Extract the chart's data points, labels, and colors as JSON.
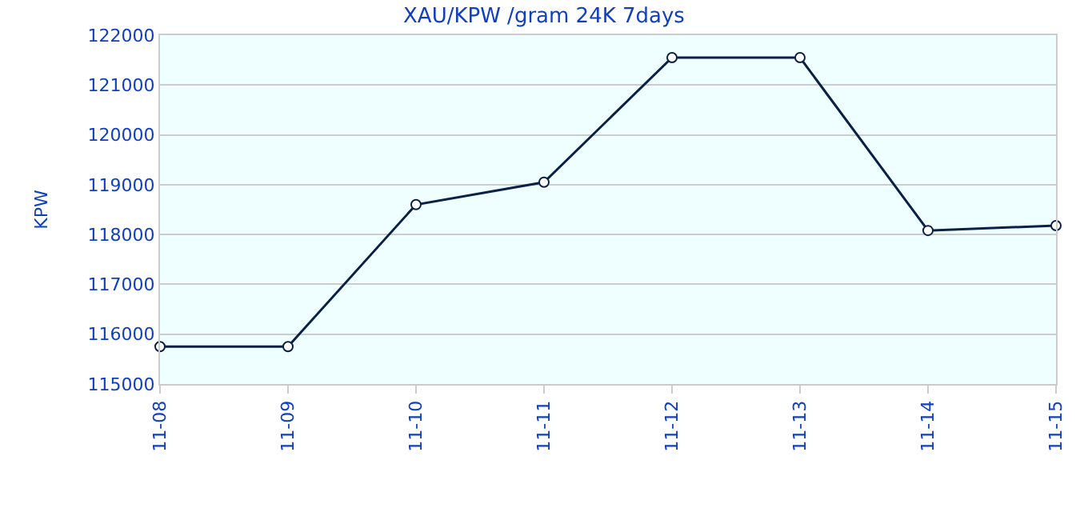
{
  "chart_data": {
    "type": "line",
    "title": "XAU/KPW /gram 24K 7days",
    "ylabel": "KPW",
    "categories": [
      "11-08",
      "11-09",
      "11-10",
      "11-11",
      "11-12",
      "11-13",
      "11-14",
      "11-15"
    ],
    "series": [
      {
        "color": "#0a2145",
        "values": [
          115750,
          115750,
          118600,
          119050,
          121550,
          121550,
          118080,
          118180
        ]
      }
    ],
    "ylim": [
      115000,
      122000
    ],
    "yticks": [
      115000,
      116000,
      117000,
      118000,
      119000,
      120000,
      121000,
      122000
    ],
    "grid": "y",
    "marker": "circle",
    "line_style": "solid",
    "legend": false
  }
}
